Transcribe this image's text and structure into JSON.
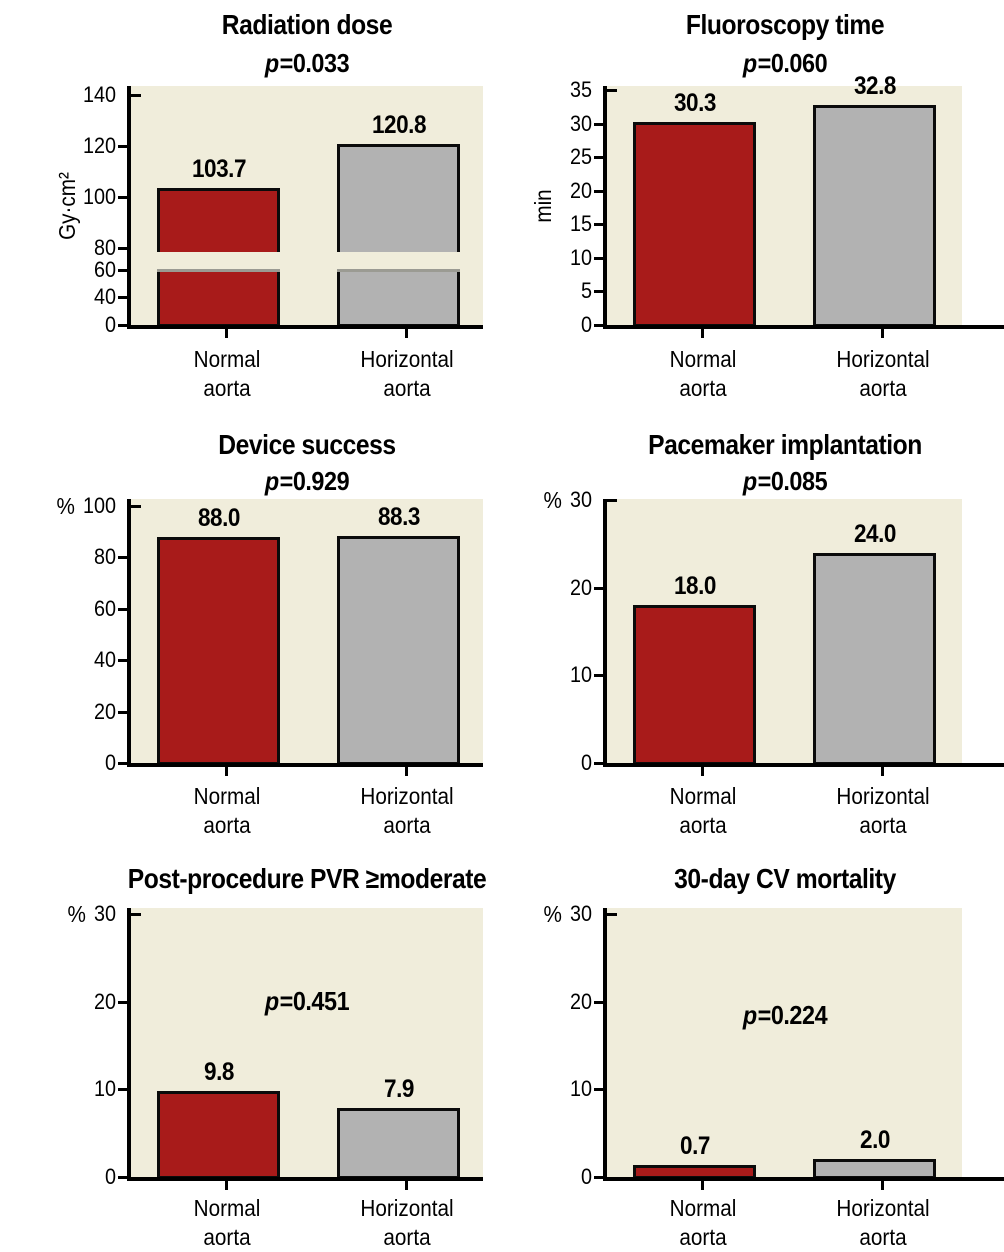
{
  "figure": {
    "background_color": "#ffffff",
    "plot_background_color": "#F0EDDB",
    "axis_color": "#000000",
    "series": [
      {
        "name": "Normal aorta",
        "color": "#A81B1A"
      },
      {
        "name": "Horizontal aorta",
        "color": "#B2B2B2"
      }
    ],
    "categories": [
      [
        "Normal",
        "aorta"
      ],
      [
        "Horizontal",
        "aorta"
      ]
    ]
  },
  "chart_data": [
    {
      "type": "bar",
      "title": "Radiation dose",
      "p_prefix": "p",
      "p_text": "=0.033",
      "p_position": "under_title",
      "ylabel": "Gy·cm²",
      "ylabel_position": "left_rotated",
      "categories": [
        "Normal aorta",
        "Horizontal aorta"
      ],
      "values": [
        103.7,
        120.8
      ],
      "value_labels": [
        "103.7",
        "120.8"
      ],
      "yticks": [
        0,
        40,
        60,
        80,
        100,
        120,
        140
      ],
      "ylim": [
        0,
        140
      ],
      "axis_break": {
        "between": [
          60,
          80
        ]
      },
      "grid": false,
      "legend": "none"
    },
    {
      "type": "bar",
      "title": "Fluoroscopy time",
      "p_prefix": "p",
      "p_text": "=0.060",
      "p_position": "under_title",
      "ylabel": "min",
      "ylabel_position": "left_rotated",
      "categories": [
        "Normal aorta",
        "Horizontal aorta"
      ],
      "values": [
        30.3,
        32.8
      ],
      "value_labels": [
        "30.3",
        "32.8"
      ],
      "yticks": [
        0,
        5,
        10,
        15,
        20,
        25,
        30,
        35
      ],
      "ylim": [
        0,
        35
      ],
      "grid": false,
      "legend": "none"
    },
    {
      "type": "bar",
      "title": "Device success",
      "p_prefix": "p",
      "p_text": "=0.929",
      "p_position": "under_title",
      "ylabel": "%",
      "ylabel_position": "top",
      "categories": [
        "Normal aorta",
        "Horizontal aorta"
      ],
      "values": [
        88.0,
        88.3
      ],
      "value_labels": [
        "88.0",
        "88.3"
      ],
      "yticks": [
        0,
        20,
        40,
        60,
        80,
        100
      ],
      "ylim": [
        0,
        100
      ],
      "grid": false,
      "legend": "none"
    },
    {
      "type": "bar",
      "title": "Pacemaker implantation",
      "p_prefix": "p",
      "p_text": "=0.085",
      "p_position": "under_title",
      "ylabel": "%",
      "ylabel_position": "top",
      "categories": [
        "Normal aorta",
        "Horizontal aorta"
      ],
      "values": [
        18.0,
        24.0
      ],
      "value_labels": [
        "18.0",
        "24.0"
      ],
      "yticks": [
        0,
        10,
        20,
        30
      ],
      "ylim": [
        0,
        30
      ],
      "grid": false,
      "legend": "none"
    },
    {
      "type": "bar",
      "title": "Post-procedure PVR ≥moderate",
      "p_prefix": "p",
      "p_text": "=0.451",
      "p_position": "inside_plot",
      "ylabel": "%",
      "ylabel_position": "top",
      "categories": [
        "Normal aorta",
        "Horizontal aorta"
      ],
      "values": [
        9.8,
        7.9
      ],
      "value_labels": [
        "9.8",
        "7.9"
      ],
      "yticks": [
        0,
        10,
        20,
        30
      ],
      "ylim": [
        0,
        30
      ],
      "grid": false,
      "legend": "none"
    },
    {
      "type": "bar",
      "title": "30-day CV mortality",
      "p_prefix": "p",
      "p_text": "=0.224",
      "p_position": "inside_plot",
      "ylabel": "%",
      "ylabel_position": "top",
      "categories": [
        "Normal aorta",
        "Horizontal aorta"
      ],
      "values": [
        0.7,
        2.0
      ],
      "value_labels": [
        "0.7",
        "2.0"
      ],
      "yticks": [
        0,
        10,
        20,
        30
      ],
      "ylim": [
        0,
        30
      ],
      "grid": false,
      "legend": "none"
    }
  ]
}
